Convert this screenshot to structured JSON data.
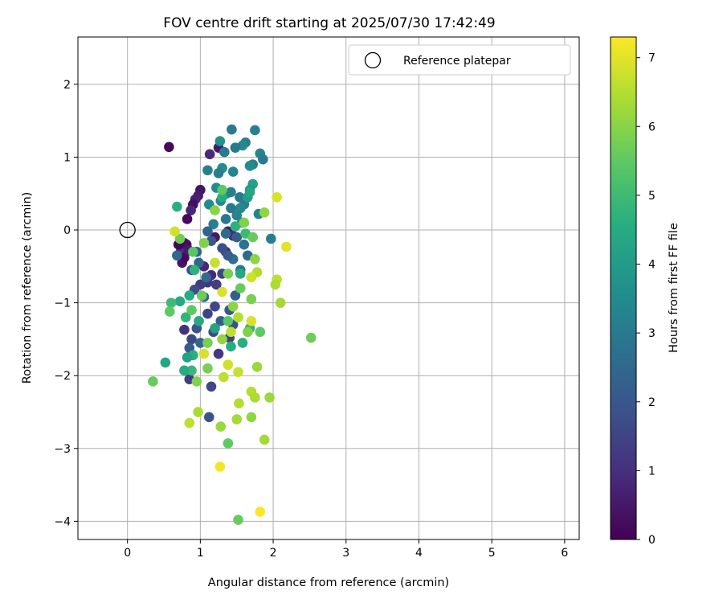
{
  "chart_data": {
    "type": "scatter",
    "title": "FOV centre drift starting at 2025/07/30 17:42:49",
    "xlabel": "Angular distance from reference (arcmin)",
    "ylabel": "Rotation from reference (arcmin)",
    "xlim": [
      -0.68,
      6.2
    ],
    "ylim": [
      -4.25,
      2.65
    ],
    "xticks": [
      0,
      1,
      2,
      3,
      4,
      5,
      6
    ],
    "yticks": [
      -4,
      -3,
      -2,
      -1,
      0,
      1,
      2
    ],
    "grid": true,
    "legend": {
      "position": "top-right",
      "entries": [
        "Reference platepar"
      ]
    },
    "reference_point": {
      "x": 0,
      "y": 0,
      "label": "Reference platepar"
    },
    "colorbar": {
      "label": "Hours from first FF file",
      "min": 0,
      "max": 7.3,
      "ticks": [
        0,
        1,
        2,
        3,
        4,
        5,
        6,
        7
      ],
      "colormap": "viridis"
    },
    "points": [
      {
        "x": 0.57,
        "y": 1.14,
        "c": 0.2
      },
      {
        "x": 1.25,
        "y": 1.13,
        "c": 0.5
      },
      {
        "x": 1.13,
        "y": 1.04,
        "c": 0.9
      },
      {
        "x": 1.0,
        "y": 0.55,
        "c": 0.4
      },
      {
        "x": 0.97,
        "y": 0.47,
        "c": 0.6
      },
      {
        "x": 0.93,
        "y": 0.42,
        "c": 0.7
      },
      {
        "x": 0.9,
        "y": 0.35,
        "c": 0.3
      },
      {
        "x": 0.87,
        "y": 0.27,
        "c": 0.8
      },
      {
        "x": 0.82,
        "y": 0.15,
        "c": 0.2
      },
      {
        "x": 0.78,
        "y": -0.18,
        "c": 0.5
      },
      {
        "x": 0.73,
        "y": -0.3,
        "c": 1.0
      },
      {
        "x": 0.75,
        "y": -0.45,
        "c": 0.4
      },
      {
        "x": 0.78,
        "y": -0.38,
        "c": 0.2
      },
      {
        "x": 0.81,
        "y": -0.2,
        "c": 0.3
      },
      {
        "x": 0.84,
        "y": -0.28,
        "c": 0.6
      },
      {
        "x": 0.7,
        "y": -0.2,
        "c": 0.1
      },
      {
        "x": 1.05,
        "y": -0.5,
        "c": 0.8
      },
      {
        "x": 1.1,
        "y": -0.72,
        "c": 1.2
      },
      {
        "x": 1.15,
        "y": -0.62,
        "c": 0.9
      },
      {
        "x": 1.2,
        "y": -0.1,
        "c": 0.5
      },
      {
        "x": 1.38,
        "y": -0.02,
        "c": 0.6
      },
      {
        "x": 1.45,
        "y": -0.08,
        "c": 0.9
      },
      {
        "x": 1.35,
        "y": -0.3,
        "c": 1.1
      },
      {
        "x": 1.0,
        "y": -0.75,
        "c": 1.3
      },
      {
        "x": 1.43,
        "y": 1.38,
        "c": 3.0
      },
      {
        "x": 1.75,
        "y": 1.37,
        "c": 3.2
      },
      {
        "x": 1.62,
        "y": 1.2,
        "c": 3.1
      },
      {
        "x": 1.58,
        "y": 1.16,
        "c": 3.4
      },
      {
        "x": 1.82,
        "y": 1.05,
        "c": 3.3
      },
      {
        "x": 1.86,
        "y": 0.97,
        "c": 3.0
      },
      {
        "x": 1.72,
        "y": 0.9,
        "c": 3.2
      },
      {
        "x": 1.68,
        "y": 0.88,
        "c": 3.5
      },
      {
        "x": 1.3,
        "y": 0.85,
        "c": 3.6
      },
      {
        "x": 1.25,
        "y": 0.78,
        "c": 3.1
      },
      {
        "x": 1.45,
        "y": 0.8,
        "c": 3.3
      },
      {
        "x": 1.48,
        "y": 1.13,
        "c": 2.9
      },
      {
        "x": 1.27,
        "y": 1.22,
        "c": 3.7
      },
      {
        "x": 1.33,
        "y": 1.07,
        "c": 3.0
      },
      {
        "x": 1.1,
        "y": 0.82,
        "c": 3.2
      },
      {
        "x": 1.22,
        "y": 0.58,
        "c": 3.5
      },
      {
        "x": 1.36,
        "y": 0.5,
        "c": 3.6
      },
      {
        "x": 1.42,
        "y": 0.52,
        "c": 3.2
      },
      {
        "x": 1.54,
        "y": 0.45,
        "c": 3.0
      },
      {
        "x": 1.6,
        "y": 0.35,
        "c": 3.1
      },
      {
        "x": 1.55,
        "y": 0.3,
        "c": 3.4
      },
      {
        "x": 1.65,
        "y": 0.45,
        "c": 4.0
      },
      {
        "x": 1.72,
        "y": 0.63,
        "c": 4.2
      },
      {
        "x": 1.68,
        "y": 0.55,
        "c": 3.8
      },
      {
        "x": 1.12,
        "y": 0.35,
        "c": 3.5
      },
      {
        "x": 1.18,
        "y": 0.08,
        "c": 3.2
      },
      {
        "x": 1.5,
        "y": 0.2,
        "c": 3.3
      },
      {
        "x": 1.57,
        "y": 0.1,
        "c": 3.5
      },
      {
        "x": 1.8,
        "y": 0.22,
        "c": 3.3
      },
      {
        "x": 1.97,
        "y": -0.12,
        "c": 3.1
      },
      {
        "x": 1.6,
        "y": -0.2,
        "c": 2.8
      },
      {
        "x": 1.65,
        "y": -0.35,
        "c": 2.5
      },
      {
        "x": 1.42,
        "y": 0.3,
        "c": 3.0
      },
      {
        "x": 1.35,
        "y": 0.15,
        "c": 2.9
      },
      {
        "x": 1.28,
        "y": 0.4,
        "c": 3.4
      },
      {
        "x": 1.45,
        "y": -0.4,
        "c": 2.7
      },
      {
        "x": 1.1,
        "y": -0.02,
        "c": 2.3
      },
      {
        "x": 1.15,
        "y": -0.15,
        "c": 2.0
      },
      {
        "x": 1.3,
        "y": -0.25,
        "c": 1.8
      },
      {
        "x": 1.38,
        "y": -0.35,
        "c": 2.1
      },
      {
        "x": 0.95,
        "y": -0.3,
        "c": 2.2
      },
      {
        "x": 0.88,
        "y": -0.55,
        "c": 1.9
      },
      {
        "x": 0.92,
        "y": -0.82,
        "c": 1.7
      },
      {
        "x": 1.05,
        "y": -0.92,
        "c": 2.4
      },
      {
        "x": 1.2,
        "y": -1.05,
        "c": 1.6
      },
      {
        "x": 1.4,
        "y": -1.1,
        "c": 2.0
      },
      {
        "x": 1.45,
        "y": -1.3,
        "c": 1.8
      },
      {
        "x": 1.28,
        "y": -1.25,
        "c": 2.2
      },
      {
        "x": 1.1,
        "y": -1.15,
        "c": 1.5
      },
      {
        "x": 0.95,
        "y": -1.35,
        "c": 1.9
      },
      {
        "x": 0.88,
        "y": -1.5,
        "c": 1.6
      },
      {
        "x": 0.85,
        "y": -1.62,
        "c": 2.1
      },
      {
        "x": 1.0,
        "y": -1.55,
        "c": 2.4
      },
      {
        "x": 1.18,
        "y": -1.4,
        "c": 1.7
      },
      {
        "x": 1.25,
        "y": -1.7,
        "c": 1.2
      },
      {
        "x": 1.4,
        "y": -1.48,
        "c": 1.4
      },
      {
        "x": 0.78,
        "y": -1.37,
        "c": 1.1
      },
      {
        "x": 1.15,
        "y": -2.15,
        "c": 1.6
      },
      {
        "x": 1.12,
        "y": -2.57,
        "c": 1.9
      },
      {
        "x": 0.85,
        "y": -2.05,
        "c": 1.3
      },
      {
        "x": 1.48,
        "y": -0.9,
        "c": 2.2
      },
      {
        "x": 1.3,
        "y": -0.6,
        "c": 1.5
      },
      {
        "x": 1.22,
        "y": -0.75,
        "c": 1.3
      },
      {
        "x": 1.08,
        "y": -0.65,
        "c": 2.6
      },
      {
        "x": 0.98,
        "y": -0.45,
        "c": 2.4
      },
      {
        "x": 0.68,
        "y": -0.35,
        "c": 2.5
      },
      {
        "x": 1.35,
        "y": -0.05,
        "c": 2.6
      },
      {
        "x": 1.55,
        "y": -0.55,
        "c": 2.9
      },
      {
        "x": 1.5,
        "y": -0.1,
        "c": 2.2
      },
      {
        "x": 0.68,
        "y": 0.32,
        "c": 4.6
      },
      {
        "x": 0.92,
        "y": -0.55,
        "c": 4.7
      },
      {
        "x": 0.85,
        "y": -0.9,
        "c": 4.5
      },
      {
        "x": 0.72,
        "y": -0.98,
        "c": 4.4
      },
      {
        "x": 0.8,
        "y": -1.2,
        "c": 4.8
      },
      {
        "x": 0.6,
        "y": -1.0,
        "c": 5.0
      },
      {
        "x": 0.52,
        "y": -1.82,
        "c": 4.3
      },
      {
        "x": 0.9,
        "y": -1.72,
        "c": 4.6
      },
      {
        "x": 0.82,
        "y": -1.75,
        "c": 4.2
      },
      {
        "x": 0.88,
        "y": -1.93,
        "c": 4.9
      },
      {
        "x": 0.78,
        "y": -1.93,
        "c": 4.5
      },
      {
        "x": 1.55,
        "y": -0.6,
        "c": 4.4
      },
      {
        "x": 1.48,
        "y": 0.05,
        "c": 4.7
      },
      {
        "x": 1.3,
        "y": 0.45,
        "c": 4.5
      },
      {
        "x": 1.68,
        "y": 0.52,
        "c": 4.3
      },
      {
        "x": 1.62,
        "y": -0.05,
        "c": 4.9
      },
      {
        "x": 1.58,
        "y": -1.55,
        "c": 4.6
      },
      {
        "x": 1.68,
        "y": -1.35,
        "c": 4.8
      },
      {
        "x": 1.42,
        "y": -1.6,
        "c": 4.5
      },
      {
        "x": 1.2,
        "y": -1.35,
        "c": 4.2
      },
      {
        "x": 0.98,
        "y": -1.25,
        "c": 4.4
      },
      {
        "x": 0.35,
        "y": -2.08,
        "c": 5.6
      },
      {
        "x": 0.58,
        "y": -1.12,
        "c": 5.5
      },
      {
        "x": 0.72,
        "y": -0.12,
        "c": 5.7
      },
      {
        "x": 0.9,
        "y": -0.3,
        "c": 5.4
      },
      {
        "x": 1.05,
        "y": -0.18,
        "c": 5.9
      },
      {
        "x": 1.2,
        "y": 0.27,
        "c": 6.0
      },
      {
        "x": 1.3,
        "y": 0.55,
        "c": 5.5
      },
      {
        "x": 1.55,
        "y": -0.8,
        "c": 5.6
      },
      {
        "x": 1.7,
        "y": -0.95,
        "c": 5.8
      },
      {
        "x": 1.82,
        "y": -1.4,
        "c": 5.5
      },
      {
        "x": 2.52,
        "y": -1.48,
        "c": 5.7
      },
      {
        "x": 1.72,
        "y": -0.1,
        "c": 5.6
      },
      {
        "x": 1.6,
        "y": 0.1,
        "c": 5.9
      },
      {
        "x": 1.38,
        "y": -0.6,
        "c": 5.8
      },
      {
        "x": 1.45,
        "y": -1.05,
        "c": 6.0
      },
      {
        "x": 1.02,
        "y": -0.9,
        "c": 5.7
      },
      {
        "x": 0.88,
        "y": -1.1,
        "c": 5.5
      },
      {
        "x": 1.1,
        "y": -1.9,
        "c": 5.8
      },
      {
        "x": 0.95,
        "y": -2.08,
        "c": 5.9
      },
      {
        "x": 1.38,
        "y": -2.93,
        "c": 5.5
      },
      {
        "x": 1.52,
        "y": -3.98,
        "c": 5.6
      },
      {
        "x": 1.88,
        "y": 0.24,
        "c": 6.1
      },
      {
        "x": 1.75,
        "y": -0.4,
        "c": 6.0
      },
      {
        "x": 1.38,
        "y": -1.25,
        "c": 5.4
      },
      {
        "x": 1.1,
        "y": -1.55,
        "c": 5.8
      },
      {
        "x": 1.3,
        "y": -1.5,
        "c": 6.1
      },
      {
        "x": 1.65,
        "y": -1.4,
        "c": 5.9
      },
      {
        "x": 0.65,
        "y": -0.02,
        "c": 6.8
      },
      {
        "x": 2.05,
        "y": 0.45,
        "c": 6.9
      },
      {
        "x": 2.18,
        "y": -0.23,
        "c": 7.0
      },
      {
        "x": 2.05,
        "y": -0.68,
        "c": 6.6
      },
      {
        "x": 2.03,
        "y": -0.75,
        "c": 6.4
      },
      {
        "x": 2.1,
        "y": -1.0,
        "c": 6.3
      },
      {
        "x": 1.78,
        "y": -0.58,
        "c": 6.5
      },
      {
        "x": 1.7,
        "y": -0.65,
        "c": 6.8
      },
      {
        "x": 1.7,
        "y": -1.25,
        "c": 6.9
      },
      {
        "x": 1.52,
        "y": -1.2,
        "c": 6.5
      },
      {
        "x": 1.78,
        "y": -1.88,
        "c": 6.2
      },
      {
        "x": 1.52,
        "y": -1.95,
        "c": 6.7
      },
      {
        "x": 1.32,
        "y": -2.02,
        "c": 6.6
      },
      {
        "x": 1.38,
        "y": -1.85,
        "c": 6.8
      },
      {
        "x": 1.7,
        "y": -2.22,
        "c": 6.5
      },
      {
        "x": 1.75,
        "y": -2.3,
        "c": 6.4
      },
      {
        "x": 1.95,
        "y": -2.3,
        "c": 6.2
      },
      {
        "x": 1.53,
        "y": -2.38,
        "c": 6.5
      },
      {
        "x": 1.5,
        "y": -2.6,
        "c": 6.3
      },
      {
        "x": 1.7,
        "y": -2.57,
        "c": 6.1
      },
      {
        "x": 0.97,
        "y": -2.5,
        "c": 6.4
      },
      {
        "x": 0.85,
        "y": -2.65,
        "c": 6.6
      },
      {
        "x": 1.28,
        "y": -2.7,
        "c": 6.2
      },
      {
        "x": 1.88,
        "y": -2.88,
        "c": 6.3
      },
      {
        "x": 1.27,
        "y": -3.25,
        "c": 7.2
      },
      {
        "x": 1.82,
        "y": -3.87,
        "c": 7.3
      },
      {
        "x": 1.05,
        "y": -1.7,
        "c": 6.9
      },
      {
        "x": 1.2,
        "y": -0.45,
        "c": 6.7
      },
      {
        "x": 1.3,
        "y": -0.85,
        "c": 6.9
      },
      {
        "x": 1.42,
        "y": -1.4,
        "c": 6.6
      }
    ]
  }
}
